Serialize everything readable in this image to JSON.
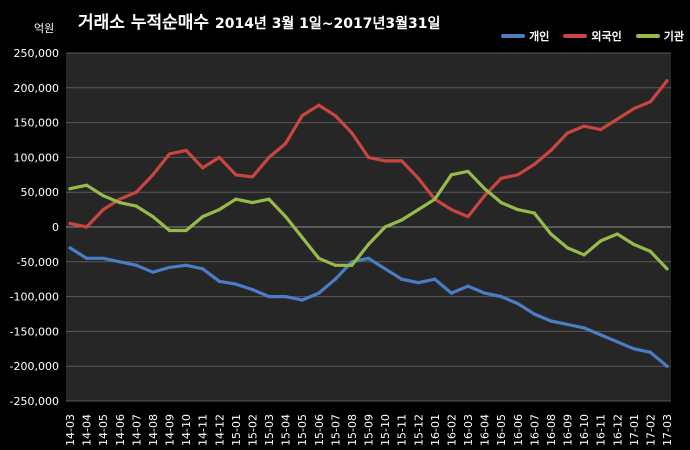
{
  "header": {
    "title_main": "거래소 누적순매수",
    "title_sub": "2014년 3월 1일~2017년3월31일",
    "unit": "억원"
  },
  "legend": {
    "items": [
      {
        "label": "개인",
        "color": "#4a7ec4"
      },
      {
        "label": "외국인",
        "color": "#c9453f"
      },
      {
        "label": "기관",
        "color": "#97bb4a"
      }
    ]
  },
  "chart_data": {
    "type": "line",
    "title": "거래소 누적순매수 2014년 3월 1일~2017년3월31일",
    "ylabel": "억원",
    "xlabel": "",
    "ylim": [
      -250000,
      250000
    ],
    "yticks": [
      250000,
      200000,
      150000,
      100000,
      50000,
      0,
      -50000,
      -100000,
      -150000,
      -200000,
      -250000
    ],
    "ytick_labels": [
      "250,000",
      "200,000",
      "150,000",
      "100,000",
      "50,000",
      "0",
      "-50,000",
      "-100,000",
      "-150,000",
      "-200,000",
      "-250,000"
    ],
    "categories": [
      "14-03",
      "14-04",
      "14-05",
      "14-06",
      "14-07",
      "14-08",
      "14-09",
      "14-10",
      "14-11",
      "14-12",
      "15-01",
      "15-02",
      "15-03",
      "15-04",
      "15-05",
      "15-06",
      "15-07",
      "15-08",
      "15-09",
      "15-10",
      "15-11",
      "15-12",
      "16-01",
      "16-02",
      "16-03",
      "16-04",
      "16-05",
      "16-06",
      "16-07",
      "16-08",
      "16-09",
      "16-10",
      "16-11",
      "16-12",
      "17-01",
      "17-02",
      "17-03"
    ],
    "grid": "horizontal",
    "legend_position": "top-right",
    "background": "#262626",
    "series": [
      {
        "name": "개인",
        "color": "#4a7ec4",
        "values": [
          -30000,
          -45000,
          -45000,
          -50000,
          -55000,
          -65000,
          -58000,
          -55000,
          -60000,
          -78000,
          -82000,
          -90000,
          -100000,
          -100000,
          -105000,
          -95000,
          -75000,
          -50000,
          -45000,
          -60000,
          -75000,
          -80000,
          -75000,
          -95000,
          -85000,
          -95000,
          -100000,
          -110000,
          -125000,
          -135000,
          -140000,
          -145000,
          -155000,
          -165000,
          -175000,
          -180000,
          -200000
        ]
      },
      {
        "name": "외국인",
        "color": "#c9453f",
        "values": [
          5000,
          0,
          25000,
          40000,
          50000,
          75000,
          105000,
          110000,
          85000,
          100000,
          75000,
          72000,
          100000,
          120000,
          160000,
          175000,
          160000,
          135000,
          100000,
          95000,
          95000,
          70000,
          40000,
          25000,
          15000,
          45000,
          70000,
          75000,
          90000,
          110000,
          135000,
          145000,
          140000,
          155000,
          170000,
          180000,
          210000
        ]
      },
      {
        "name": "기관",
        "color": "#97bb4a",
        "values": [
          55000,
          60000,
          45000,
          35000,
          30000,
          15000,
          -5000,
          -5000,
          15000,
          25000,
          40000,
          35000,
          40000,
          15000,
          -15000,
          -45000,
          -55000,
          -55000,
          -25000,
          0,
          10000,
          25000,
          40000,
          75000,
          80000,
          55000,
          35000,
          25000,
          20000,
          -10000,
          -30000,
          -40000,
          -20000,
          -10000,
          -25000,
          -35000,
          -60000
        ]
      }
    ]
  }
}
